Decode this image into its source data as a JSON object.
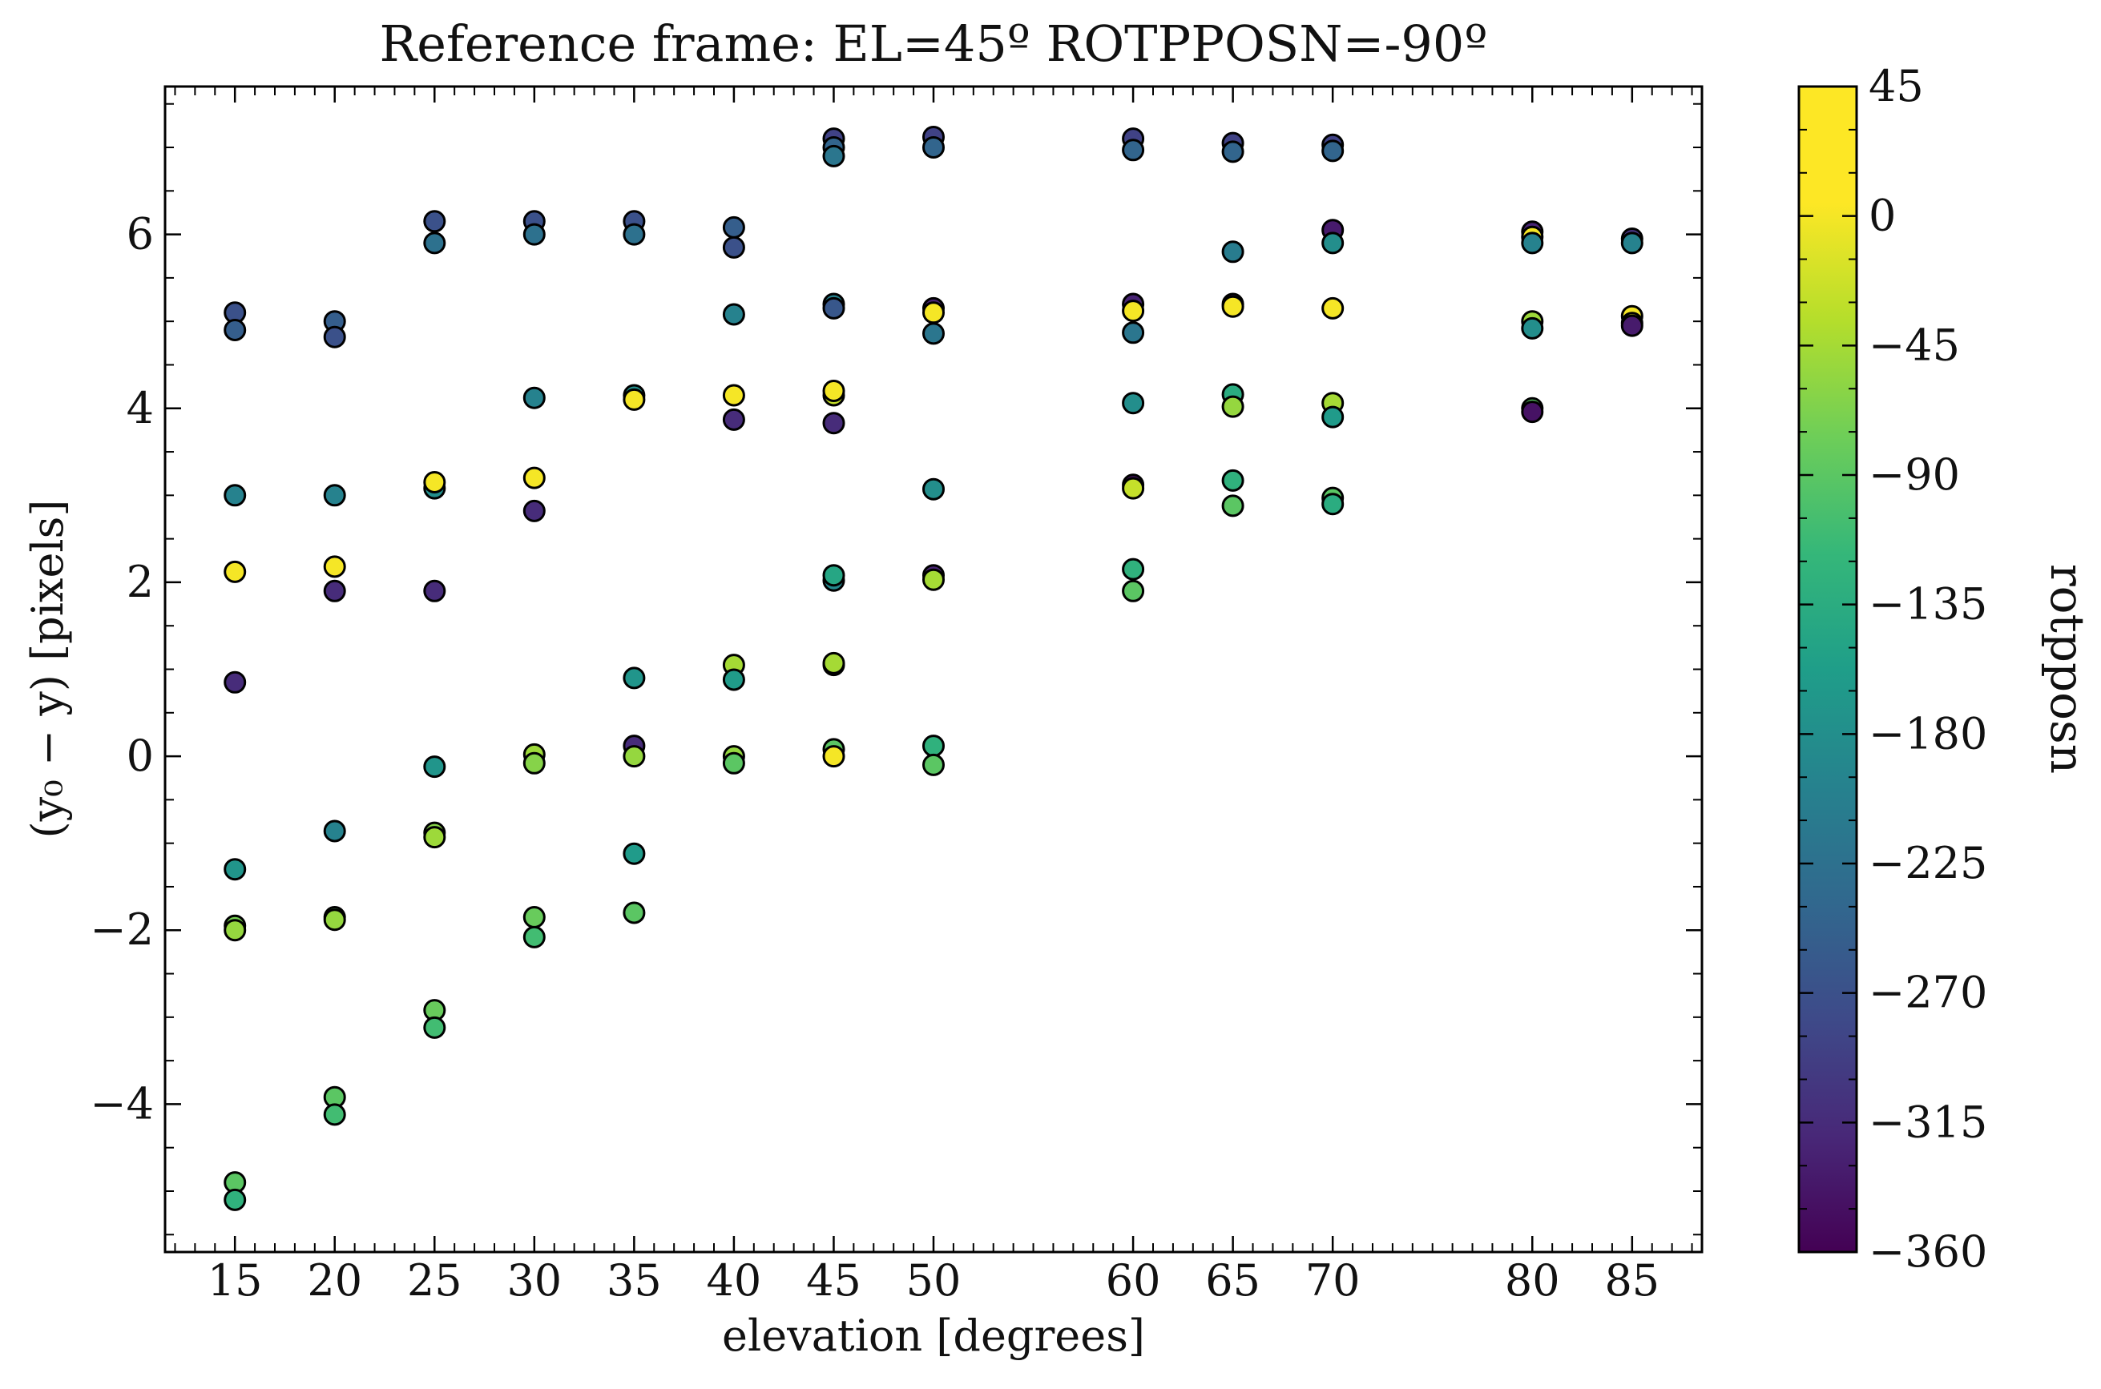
{
  "chart_data": {
    "type": "scatter",
    "title": "Reference frame: EL=45º ROTPPOSN=-90º",
    "xlabel": "elevation [degrees]",
    "ylabel": "(y₀ − y) [pixels]",
    "xlim": [
      11.5,
      88.5
    ],
    "ylim": [
      -5.7,
      7.7
    ],
    "x_ticks": [
      15,
      20,
      25,
      30,
      35,
      40,
      45,
      50,
      60,
      65,
      70,
      80,
      85
    ],
    "x_tick_labels": [
      "15",
      "20",
      "25",
      "30",
      "35",
      "40",
      "45",
      "50",
      "60",
      "65",
      "70",
      "80",
      "85"
    ],
    "y_ticks": [
      -4,
      -2,
      0,
      2,
      4,
      6
    ],
    "y_tick_labels": [
      "−4",
      "−2",
      "0",
      "2",
      "4",
      "6"
    ],
    "colorbar": {
      "label": "rotpposn",
      "colormap": "viridis",
      "range": [
        -360,
        45
      ],
      "ticks": [
        45,
        0,
        -45,
        -90,
        -135,
        -180,
        -225,
        -270,
        -315,
        -360
      ],
      "tick_labels": [
        "45",
        "0",
        "−45",
        "−90",
        "−135",
        "−180",
        "−225",
        "−270",
        "−315",
        "−360"
      ]
    },
    "grid": false,
    "marker_edge_color": "#000000",
    "points": [
      {
        "x": 15,
        "y": 5.1,
        "c": -260
      },
      {
        "x": 15,
        "y": 4.9,
        "c": -240
      },
      {
        "x": 15,
        "y": 3.0,
        "c": -180
      },
      {
        "x": 15,
        "y": 2.12,
        "c": 40
      },
      {
        "x": 15,
        "y": 0.85,
        "c": -310
      },
      {
        "x": 15,
        "y": -1.3,
        "c": -150
      },
      {
        "x": 15,
        "y": -1.95,
        "c": -40
      },
      {
        "x": 15,
        "y": -2.0,
        "c": -20
      },
      {
        "x": 15,
        "y": -4.9,
        "c": -60
      },
      {
        "x": 15,
        "y": -5.1,
        "c": -100
      },
      {
        "x": 20,
        "y": 5.0,
        "c": -240
      },
      {
        "x": 20,
        "y": 4.82,
        "c": -260
      },
      {
        "x": 20,
        "y": 3.0,
        "c": -180
      },
      {
        "x": 20,
        "y": 2.18,
        "c": 40
      },
      {
        "x": 20,
        "y": 1.9,
        "c": -310
      },
      {
        "x": 20,
        "y": -0.86,
        "c": -180
      },
      {
        "x": 20,
        "y": -1.85,
        "c": -60
      },
      {
        "x": 20,
        "y": -1.88,
        "c": -20
      },
      {
        "x": 20,
        "y": -3.92,
        "c": -60
      },
      {
        "x": 20,
        "y": -4.12,
        "c": -80
      },
      {
        "x": 25,
        "y": 6.15,
        "c": -260
      },
      {
        "x": 25,
        "y": 5.9,
        "c": -210
      },
      {
        "x": 25,
        "y": 3.08,
        "c": -160
      },
      {
        "x": 25,
        "y": 3.15,
        "c": 40
      },
      {
        "x": 25,
        "y": 1.9,
        "c": -310
      },
      {
        "x": 25,
        "y": -0.12,
        "c": -150
      },
      {
        "x": 25,
        "y": -0.88,
        "c": -30
      },
      {
        "x": 25,
        "y": -0.93,
        "c": -15
      },
      {
        "x": 25,
        "y": -2.92,
        "c": -50
      },
      {
        "x": 25,
        "y": -3.12,
        "c": -80
      },
      {
        "x": 30,
        "y": 6.15,
        "c": -260
      },
      {
        "x": 30,
        "y": 6.0,
        "c": -210
      },
      {
        "x": 30,
        "y": 4.12,
        "c": -180
      },
      {
        "x": 30,
        "y": 3.2,
        "c": 40
      },
      {
        "x": 30,
        "y": 2.82,
        "c": -310
      },
      {
        "x": 30,
        "y": 0.02,
        "c": -15
      },
      {
        "x": 30,
        "y": -0.08,
        "c": -30
      },
      {
        "x": 30,
        "y": -1.85,
        "c": -50
      },
      {
        "x": 30,
        "y": -2.08,
        "c": -80
      },
      {
        "x": 35,
        "y": 6.15,
        "c": -260
      },
      {
        "x": 35,
        "y": 6.0,
        "c": -210
      },
      {
        "x": 35,
        "y": 4.15,
        "c": -160
      },
      {
        "x": 35,
        "y": 4.1,
        "c": 40
      },
      {
        "x": 35,
        "y": 0.9,
        "c": -150
      },
      {
        "x": 35,
        "y": 0.12,
        "c": -310
      },
      {
        "x": 35,
        "y": 0.0,
        "c": -20
      },
      {
        "x": 35,
        "y": -1.12,
        "c": -140
      },
      {
        "x": 35,
        "y": -1.8,
        "c": -60
      },
      {
        "x": 40,
        "y": 6.08,
        "c": -240
      },
      {
        "x": 40,
        "y": 5.85,
        "c": -260
      },
      {
        "x": 40,
        "y": 5.08,
        "c": -180
      },
      {
        "x": 40,
        "y": 4.15,
        "c": 40
      },
      {
        "x": 40,
        "y": 3.87,
        "c": -310
      },
      {
        "x": 40,
        "y": 1.05,
        "c": -10
      },
      {
        "x": 40,
        "y": 0.88,
        "c": -140
      },
      {
        "x": 40,
        "y": 0.0,
        "c": -20
      },
      {
        "x": 40,
        "y": -0.08,
        "c": -60
      },
      {
        "x": 45,
        "y": 7.1,
        "c": -280
      },
      {
        "x": 45,
        "y": 7.0,
        "c": -230
      },
      {
        "x": 45,
        "y": 6.9,
        "c": -200
      },
      {
        "x": 45,
        "y": 5.2,
        "c": -180
      },
      {
        "x": 45,
        "y": 5.15,
        "c": -250
      },
      {
        "x": 45,
        "y": 4.15,
        "c": 10
      },
      {
        "x": 45,
        "y": 4.2,
        "c": 40
      },
      {
        "x": 45,
        "y": 3.83,
        "c": -310
      },
      {
        "x": 45,
        "y": 2.02,
        "c": -170
      },
      {
        "x": 45,
        "y": 2.08,
        "c": -120
      },
      {
        "x": 45,
        "y": 1.05,
        "c": -30
      },
      {
        "x": 45,
        "y": 1.07,
        "c": -10
      },
      {
        "x": 45,
        "y": 0.08,
        "c": -60
      },
      {
        "x": 45,
        "y": 0.0,
        "c": 40
      },
      {
        "x": 50,
        "y": 7.12,
        "c": -280
      },
      {
        "x": 50,
        "y": 7.0,
        "c": -230
      },
      {
        "x": 50,
        "y": 5.15,
        "c": -320
      },
      {
        "x": 50,
        "y": 5.1,
        "c": 40
      },
      {
        "x": 50,
        "y": 4.86,
        "c": -200
      },
      {
        "x": 50,
        "y": 3.07,
        "c": -160
      },
      {
        "x": 50,
        "y": 2.08,
        "c": -320
      },
      {
        "x": 50,
        "y": 2.03,
        "c": -10
      },
      {
        "x": 50,
        "y": 0.12,
        "c": -100
      },
      {
        "x": 50,
        "y": -0.1,
        "c": -60
      },
      {
        "x": 60,
        "y": 7.1,
        "c": -280
      },
      {
        "x": 60,
        "y": 6.97,
        "c": -230
      },
      {
        "x": 60,
        "y": 5.2,
        "c": -320
      },
      {
        "x": 60,
        "y": 5.12,
        "c": 40
      },
      {
        "x": 60,
        "y": 4.87,
        "c": -200
      },
      {
        "x": 60,
        "y": 4.06,
        "c": -160
      },
      {
        "x": 60,
        "y": 3.12,
        "c": -340
      },
      {
        "x": 60,
        "y": 3.08,
        "c": 10
      },
      {
        "x": 60,
        "y": 2.15,
        "c": -100
      },
      {
        "x": 60,
        "y": 1.9,
        "c": -60
      },
      {
        "x": 65,
        "y": 7.05,
        "c": -280
      },
      {
        "x": 65,
        "y": 6.95,
        "c": -230
      },
      {
        "x": 65,
        "y": 5.8,
        "c": -190
      },
      {
        "x": 65,
        "y": 5.2,
        "c": -320
      },
      {
        "x": 65,
        "y": 5.17,
        "c": 40
      },
      {
        "x": 65,
        "y": 4.16,
        "c": -110
      },
      {
        "x": 65,
        "y": 4.02,
        "c": -20
      },
      {
        "x": 65,
        "y": 3.17,
        "c": -100
      },
      {
        "x": 65,
        "y": 2.88,
        "c": -60
      },
      {
        "x": 70,
        "y": 7.03,
        "c": -280
      },
      {
        "x": 70,
        "y": 6.96,
        "c": -230
      },
      {
        "x": 70,
        "y": 6.05,
        "c": -330
      },
      {
        "x": 70,
        "y": 5.9,
        "c": -160
      },
      {
        "x": 70,
        "y": 5.15,
        "c": 40
      },
      {
        "x": 70,
        "y": 4.06,
        "c": -10
      },
      {
        "x": 70,
        "y": 3.9,
        "c": -140
      },
      {
        "x": 70,
        "y": 2.97,
        "c": -60
      },
      {
        "x": 70,
        "y": 2.9,
        "c": -110
      },
      {
        "x": 80,
        "y": 6.03,
        "c": -320
      },
      {
        "x": 80,
        "y": 5.97,
        "c": 40
      },
      {
        "x": 80,
        "y": 5.9,
        "c": -180
      },
      {
        "x": 80,
        "y": 5.0,
        "c": -15
      },
      {
        "x": 80,
        "y": 4.92,
        "c": -160
      },
      {
        "x": 80,
        "y": 4.0,
        "c": -60
      },
      {
        "x": 80,
        "y": 3.96,
        "c": -340
      },
      {
        "x": 85,
        "y": 5.95,
        "c": -300
      },
      {
        "x": 85,
        "y": 5.9,
        "c": -180
      },
      {
        "x": 85,
        "y": 5.06,
        "c": 40
      },
      {
        "x": 85,
        "y": 4.98,
        "c": 20
      },
      {
        "x": 85,
        "y": 4.95,
        "c": -330
      }
    ]
  }
}
